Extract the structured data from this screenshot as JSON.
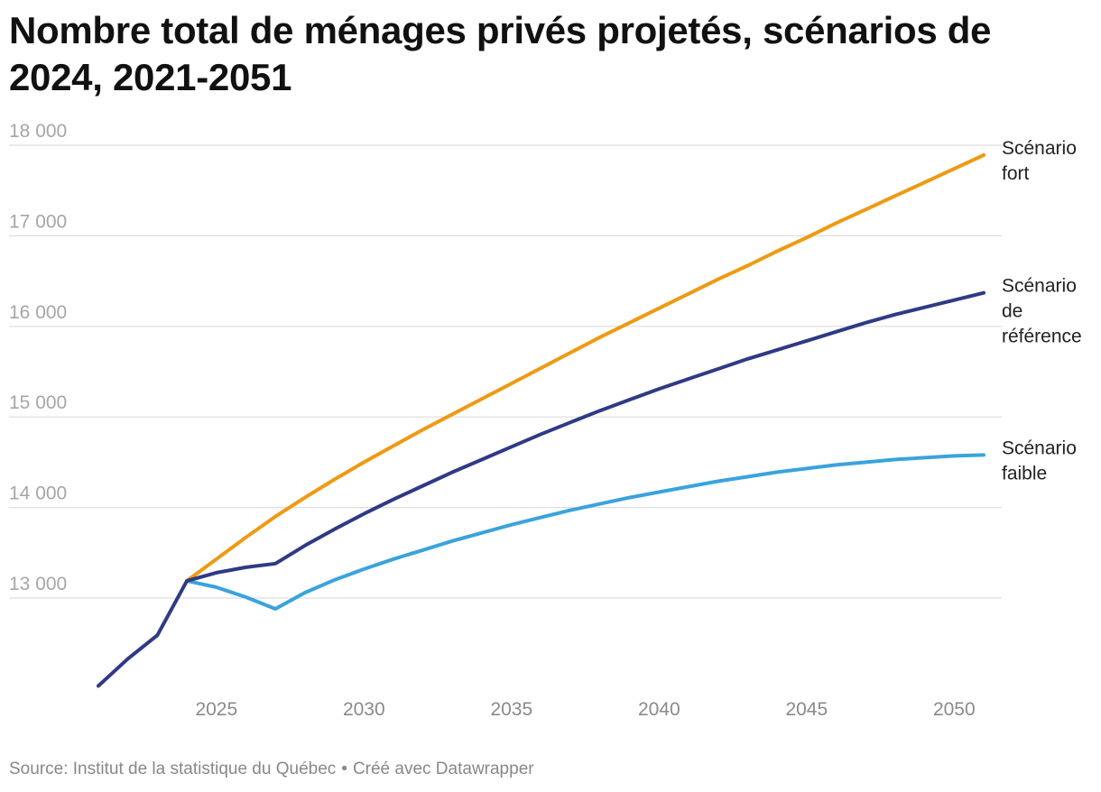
{
  "title": "Nombre total de ménages privés projetés, scénarios de 2024, 2021-2051",
  "footer": {
    "source": "Source: Institut de la statistique du Québec",
    "separator": "•",
    "credit": "Créé avec Datawrapper"
  },
  "colors": {
    "fort": "#ef9a12",
    "reference": "#2f3a86",
    "faible": "#3aa3dd",
    "grid": "#dddddd"
  },
  "chart_data": {
    "type": "line",
    "title": "Nombre total de ménages privés projetés, scénarios de 2024, 2021-2051",
    "xlabel": "",
    "ylabel": "",
    "xlim": [
      2021,
      2051
    ],
    "ylim": [
      12000,
      18000
    ],
    "y_ticks": [
      13000,
      14000,
      15000,
      16000,
      17000,
      18000
    ],
    "y_tick_labels": [
      "13 000",
      "14 000",
      "15 000",
      "16 000",
      "17 000",
      "18 000"
    ],
    "x_ticks": [
      2025,
      2030,
      2035,
      2040,
      2045,
      2050
    ],
    "x_tick_labels": [
      "2025",
      "2030",
      "2035",
      "2040",
      "2045",
      "2050"
    ],
    "grid": true,
    "legend": "labels at line ends",
    "series": [
      {
        "key": "fort",
        "name": "Scénario fort",
        "label_lines": [
          "Scénario",
          "fort"
        ],
        "x": [
          2024,
          2025,
          2026,
          2027,
          2028,
          2029,
          2030,
          2031,
          2032,
          2033,
          2034,
          2035,
          2036,
          2037,
          2038,
          2039,
          2040,
          2041,
          2042,
          2043,
          2044,
          2045,
          2046,
          2047,
          2048,
          2049,
          2050,
          2051
        ],
        "y": [
          13190,
          13430,
          13670,
          13900,
          14110,
          14310,
          14500,
          14680,
          14860,
          15030,
          15200,
          15370,
          15540,
          15710,
          15880,
          16040,
          16200,
          16360,
          16520,
          16670,
          16830,
          16980,
          17140,
          17290,
          17440,
          17590,
          17740,
          17890
        ]
      },
      {
        "key": "reference",
        "name": "Scénario de référence",
        "label_lines": [
          "Scénario",
          "de",
          "référence"
        ],
        "x": [
          2021,
          2022,
          2023,
          2024,
          2025,
          2026,
          2027,
          2028,
          2029,
          2030,
          2031,
          2032,
          2033,
          2034,
          2035,
          2036,
          2037,
          2038,
          2039,
          2040,
          2041,
          2042,
          2043,
          2044,
          2045,
          2046,
          2047,
          2048,
          2049,
          2050,
          2051
        ],
        "y": [
          12030,
          12330,
          12590,
          13190,
          13280,
          13340,
          13380,
          13580,
          13760,
          13930,
          14090,
          14240,
          14390,
          14530,
          14670,
          14810,
          14940,
          15070,
          15190,
          15310,
          15420,
          15530,
          15640,
          15740,
          15840,
          15940,
          16040,
          16130,
          16210,
          16290,
          16370
        ]
      },
      {
        "key": "faible",
        "name": "Scénario faible",
        "label_lines": [
          "Scénario",
          "faible"
        ],
        "x": [
          2024,
          2025,
          2026,
          2027,
          2028,
          2029,
          2030,
          2031,
          2032,
          2033,
          2034,
          2035,
          2036,
          2037,
          2038,
          2039,
          2040,
          2041,
          2042,
          2043,
          2044,
          2045,
          2046,
          2047,
          2048,
          2049,
          2050,
          2051
        ],
        "y": [
          13190,
          13120,
          13010,
          12880,
          13060,
          13200,
          13320,
          13430,
          13530,
          13630,
          13720,
          13810,
          13890,
          13970,
          14040,
          14110,
          14170,
          14230,
          14290,
          14340,
          14390,
          14430,
          14470,
          14500,
          14530,
          14550,
          14570,
          14580
        ]
      }
    ]
  }
}
